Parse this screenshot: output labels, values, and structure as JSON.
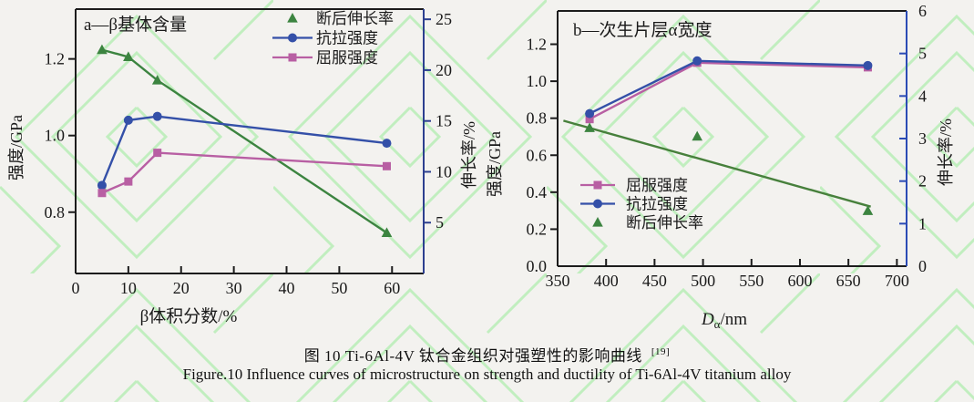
{
  "figure": {
    "caption_zh": "图 10 Ti-6Al-4V 钛合金组织对强塑性的影响曲线",
    "caption_ref": "[19]",
    "caption_en": "Figure.10 Influence curves of microstructure on strength and ductility of Ti-6Al-4V titanium alloy"
  },
  "colors": {
    "tensile": "#3450a8",
    "yield": "#b85fa3",
    "elongation": "#3c8440",
    "trend": "#47803c",
    "axis": "#1c1c1c",
    "text": "#1a1a1a",
    "right_axis_a": "#2c3f8f",
    "right_axis_b": "#2b4bb5",
    "watermark": "#8fe98f",
    "background": "#f3f2ef"
  },
  "chart_data": [
    {
      "id": "a",
      "type": "line",
      "title": "a—β基体含量",
      "xlabel": "β体积分数/%",
      "x_range": [
        0,
        66
      ],
      "x_ticks": [
        "0",
        "10",
        "20",
        "30",
        "40",
        "50",
        "60"
      ],
      "y_left": {
        "label": "强度/GPa",
        "range": [
          0.64,
          1.33
        ],
        "ticks": [
          "0.8",
          "1.0",
          "1.2"
        ]
      },
      "y_right": {
        "label": "伸长率/%",
        "range": [
          0,
          26
        ],
        "ticks": [
          "5",
          "10",
          "15",
          "20",
          "25"
        ]
      },
      "legend_position": "top-right",
      "grid": false,
      "series": [
        {
          "key": "elongation",
          "name": "断后伸长率",
          "axis": "right",
          "marker": "triangle",
          "line": true,
          "legend_line": false,
          "color": "elongation",
          "x": [
            5,
            10,
            15.5,
            59
          ],
          "y": [
            22,
            21.3,
            19,
            4
          ]
        },
        {
          "key": "tensile",
          "name": "抗拉强度",
          "axis": "left",
          "marker": "circle",
          "line": true,
          "legend_line": true,
          "color": "tensile",
          "x": [
            5,
            10,
            15.5,
            59
          ],
          "y": [
            0.87,
            1.04,
            1.05,
            0.98
          ]
        },
        {
          "key": "yield",
          "name": "屈服强度",
          "axis": "left",
          "marker": "square",
          "line": true,
          "legend_line": true,
          "color": "yield",
          "x": [
            5,
            10,
            15.5,
            59
          ],
          "y": [
            0.85,
            0.88,
            0.955,
            0.92
          ]
        }
      ]
    },
    {
      "id": "b",
      "type": "line",
      "title": "b—次生片层α宽度",
      "xlabel": {
        "symbol": "D",
        "subscript": "α",
        "unit": "/nm"
      },
      "x_range": [
        350,
        710
      ],
      "x_ticks": [
        "350",
        "400",
        "450",
        "500",
        "550",
        "600",
        "650",
        "700"
      ],
      "y_left": {
        "label": "强度/GPa",
        "range": [
          0,
          1.38
        ],
        "ticks": [
          "0.0",
          "0.2",
          "0.4",
          "0.6",
          "0.8",
          "1.0",
          "1.2"
        ]
      },
      "y_right": {
        "label": "伸长率/%",
        "range": [
          0,
          6
        ],
        "ticks": [
          "0",
          "1",
          "2",
          "3",
          "4",
          "5",
          "6"
        ]
      },
      "legend_position": "bottom-left",
      "grid": false,
      "series": [
        {
          "key": "yield",
          "name": "屈服强度",
          "axis": "left",
          "marker": "square",
          "line": true,
          "legend_line": true,
          "color": "yield",
          "x": [
            383,
            494,
            670
          ],
          "y": [
            0.795,
            1.1,
            1.075
          ]
        },
        {
          "key": "tensile",
          "name": "抗拉强度",
          "axis": "left",
          "marker": "circle",
          "line": true,
          "legend_line": true,
          "color": "tensile",
          "x": [
            383,
            494,
            670
          ],
          "y": [
            0.825,
            1.11,
            1.085
          ]
        },
        {
          "key": "trend",
          "name": "",
          "axis": "right",
          "marker": "none",
          "line": true,
          "legend_line": false,
          "in_legend": false,
          "color": "trend",
          "x": [
            356,
            673
          ],
          "y": [
            3.42,
            1.4
          ]
        },
        {
          "key": "elongation",
          "name": "断后伸长率",
          "axis": "right",
          "marker": "triangle",
          "line": false,
          "legend_line": false,
          "color": "elongation",
          "x": [
            383,
            494,
            670
          ],
          "y": [
            3.25,
            3.05,
            1.3
          ]
        }
      ]
    }
  ]
}
